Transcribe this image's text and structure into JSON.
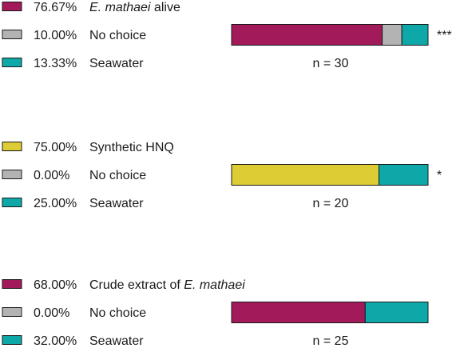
{
  "chart_data": [
    {
      "type": "bar",
      "orientation": "horizontal-stacked",
      "categories": [
        "E. mathaei alive",
        "No choice",
        "Seawater"
      ],
      "series": [
        {
          "name": "E. mathaei alive",
          "label_prefix": "",
          "label_italic": "E. mathaei",
          "label_suffix": " alive",
          "value": 76.67,
          "value_text": "76.67%",
          "color": "#A31A5B"
        },
        {
          "name": "No choice",
          "label_prefix": "No choice",
          "label_italic": "",
          "label_suffix": "",
          "value": 10.0,
          "value_text": "10.00%",
          "color": "#B3B3B3"
        },
        {
          "name": "Seawater",
          "label_prefix": "Seawater",
          "label_italic": "",
          "label_suffix": "",
          "value": 13.33,
          "value_text": "13.33%",
          "color": "#0FA8A8"
        }
      ],
      "n_label": "n = 30",
      "significance": "***"
    },
    {
      "type": "bar",
      "orientation": "horizontal-stacked",
      "categories": [
        "Synthetic HNQ",
        "No choice",
        "Seawater"
      ],
      "series": [
        {
          "name": "Synthetic HNQ",
          "label_prefix": "Synthetic HNQ",
          "label_italic": "",
          "label_suffix": "",
          "value": 75.0,
          "value_text": "75.00%",
          "color": "#DDCC33"
        },
        {
          "name": "No choice",
          "label_prefix": "No choice",
          "label_italic": "",
          "label_suffix": "",
          "value": 0.0,
          "value_text": "0.00%",
          "color": "#B3B3B3"
        },
        {
          "name": "Seawater",
          "label_prefix": "Seawater",
          "label_italic": "",
          "label_suffix": "",
          "value": 25.0,
          "value_text": "25.00%",
          "color": "#0FA8A8"
        }
      ],
      "n_label": "n = 20",
      "significance": "*"
    },
    {
      "type": "bar",
      "orientation": "horizontal-stacked",
      "categories": [
        "Crude extract of E. mathaei",
        "No choice",
        "Seawater"
      ],
      "series": [
        {
          "name": "Crude extract of E. mathaei",
          "label_prefix": "Crude extract of ",
          "label_italic": "E. mathaei",
          "label_suffix": "",
          "value": 68.0,
          "value_text": "68.00%",
          "color": "#A31A5B"
        },
        {
          "name": "No choice",
          "label_prefix": "No choice",
          "label_italic": "",
          "label_suffix": "",
          "value": 0.0,
          "value_text": "0.00%",
          "color": "#B3B3B3"
        },
        {
          "name": "Seawater",
          "label_prefix": "Seawater",
          "label_italic": "",
          "label_suffix": "",
          "value": 32.0,
          "value_text": "32.00%",
          "color": "#0FA8A8"
        }
      ],
      "n_label": "n = 25",
      "significance": ""
    }
  ]
}
